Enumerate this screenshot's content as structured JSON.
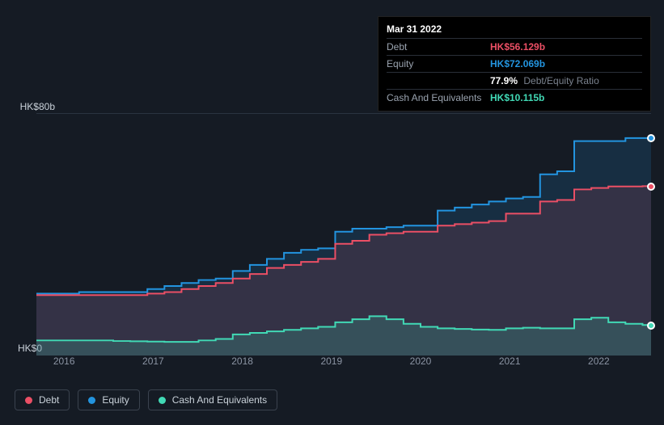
{
  "chart": {
    "type": "area",
    "background_color": "#151b24",
    "plot_background": "#1a222e",
    "grid_color": "#2a3340",
    "text_color": "#c9d1d9",
    "muted_text_color": "#8b94a3",
    "y_axis": {
      "min_label": "HK$0",
      "max_label": "HK$80b",
      "min": 0,
      "max": 80
    },
    "x_axis": {
      "labels": [
        "2016",
        "2017",
        "2018",
        "2019",
        "2020",
        "2021",
        "2022"
      ],
      "positions_pct": [
        4.5,
        19.0,
        33.5,
        48.0,
        62.5,
        77.0,
        91.5
      ]
    },
    "series": {
      "equity": {
        "label": "Equity",
        "color": "#2394df",
        "fill": "rgba(35,148,223,0.16)",
        "values": [
          20.5,
          20.5,
          20.5,
          21,
          21,
          21,
          21,
          22,
          23,
          24,
          25,
          25.5,
          28,
          30,
          32,
          34,
          35,
          35.5,
          41,
          42,
          42,
          42.5,
          43,
          43,
          48,
          49,
          50,
          51,
          52,
          52.5,
          60,
          61,
          71,
          71,
          71,
          72,
          72
        ]
      },
      "debt": {
        "label": "Debt",
        "color": "#eb4f65",
        "fill": "rgba(235,79,101,0.14)",
        "values": [
          20,
          20,
          20,
          20,
          20,
          20,
          20,
          20.5,
          21,
          22,
          23,
          24,
          25.5,
          27,
          29,
          30,
          31,
          32,
          37,
          38,
          40,
          40.5,
          41,
          41,
          43,
          43.5,
          44,
          44.5,
          47,
          47,
          51,
          51.5,
          55,
          55.5,
          56,
          56,
          56.1
        ]
      },
      "cash": {
        "label": "Cash And Equivalents",
        "color": "#41d9b5",
        "fill": "rgba(65,217,181,0.18)",
        "values": [
          5,
          5,
          5,
          5,
          5,
          4.8,
          4.7,
          4.6,
          4.5,
          4.5,
          5,
          5.5,
          7,
          7.5,
          8,
          8.5,
          9,
          9.5,
          11,
          12,
          13,
          12,
          10.5,
          9.5,
          9,
          8.8,
          8.6,
          8.5,
          9,
          9.2,
          9,
          9,
          12,
          12.5,
          11,
          10.5,
          10.1
        ]
      }
    },
    "end_markers": [
      {
        "series": "equity",
        "y": 72,
        "color": "#2394df"
      },
      {
        "series": "debt",
        "y": 56.1,
        "color": "#eb4f65"
      },
      {
        "series": "cash",
        "y": 10.1,
        "color": "#41d9b5"
      }
    ]
  },
  "tooltip": {
    "title": "Mar 31 2022",
    "rows": [
      {
        "label": "Debt",
        "value": "HK$56.129b",
        "color": "#eb4f65"
      },
      {
        "label": "Equity",
        "value": "HK$72.069b",
        "color": "#2394df"
      },
      {
        "label": "",
        "value": "77.9%",
        "extra": "Debt/Equity Ratio",
        "color": "#ffffff"
      },
      {
        "label": "Cash And Equivalents",
        "value": "HK$10.115b",
        "color": "#41d9b5"
      }
    ]
  },
  "legend": [
    {
      "label": "Debt",
      "color": "#eb4f65"
    },
    {
      "label": "Equity",
      "color": "#2394df"
    },
    {
      "label": "Cash And Equivalents",
      "color": "#41d9b5"
    }
  ]
}
